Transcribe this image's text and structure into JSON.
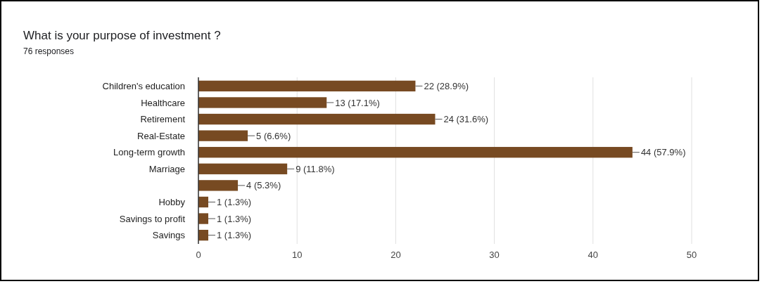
{
  "chart_data": {
    "type": "bar",
    "orientation": "horizontal",
    "title": "What is your purpose of investment ?",
    "subtitle": "76 responses",
    "categories": [
      "Children's education",
      "Healthcare",
      "Retirement",
      "Real-Estate",
      "Long-term growth",
      "Marriage",
      null,
      "Hobby",
      "Savings to profit",
      "Savings"
    ],
    "values": [
      22,
      13,
      24,
      5,
      44,
      9,
      4,
      1,
      1,
      1
    ],
    "value_labels": [
      "22 (28.9%)",
      "13 (17.1%)",
      "24 (31.6%)",
      "5 (6.6%)",
      "44 (57.9%)",
      "9 (11.8%)",
      "4 (5.3%)",
      "1 (1.3%)",
      "1 (1.3%)",
      "1 (1.3%)"
    ],
    "color": "#774a22",
    "xlim": [
      0,
      50
    ],
    "xticks": [
      0,
      10,
      20,
      30,
      40,
      50
    ],
    "grid": "x"
  }
}
